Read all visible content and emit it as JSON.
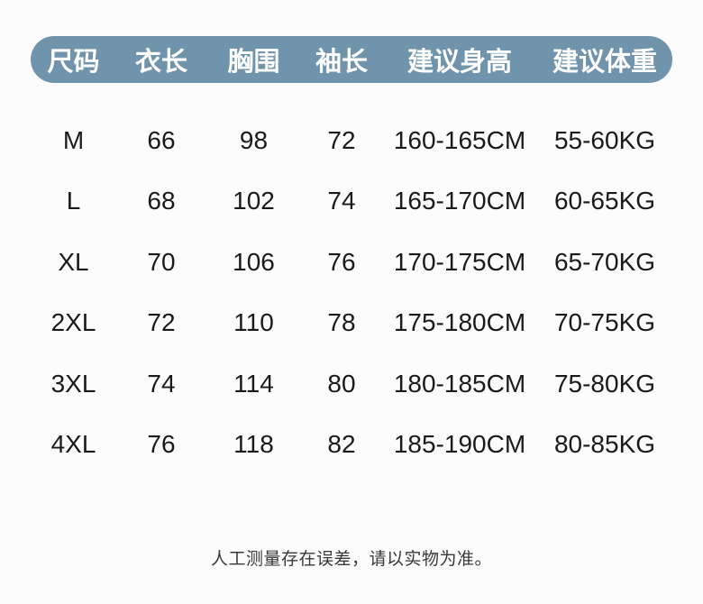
{
  "chart_data": {
    "type": "table",
    "columns": [
      "尺码",
      "衣长",
      "胸围",
      "袖长",
      "建议身高",
      "建议体重"
    ],
    "rows": [
      [
        "M",
        "66",
        "98",
        "72",
        "160-165CM",
        "55-60KG"
      ],
      [
        "L",
        "68",
        "102",
        "74",
        "165-170CM",
        "60-65KG"
      ],
      [
        "XL",
        "70",
        "106",
        "76",
        "170-175CM",
        "65-70KG"
      ],
      [
        "2XL",
        "72",
        "110",
        "78",
        "175-180CM",
        "70-75KG"
      ],
      [
        "3XL",
        "74",
        "114",
        "80",
        "180-185CM",
        "75-80KG"
      ],
      [
        "4XL",
        "76",
        "118",
        "82",
        "185-190CM",
        "80-85KG"
      ]
    ],
    "note": "人工测量存在误差，请以实物为准。"
  },
  "colors": {
    "header_bg": "#7194ad",
    "header_text": "#ffffff",
    "body_text": "#1a1a1a",
    "note_text": "#383838",
    "page_bg": "#fcfcfc"
  }
}
